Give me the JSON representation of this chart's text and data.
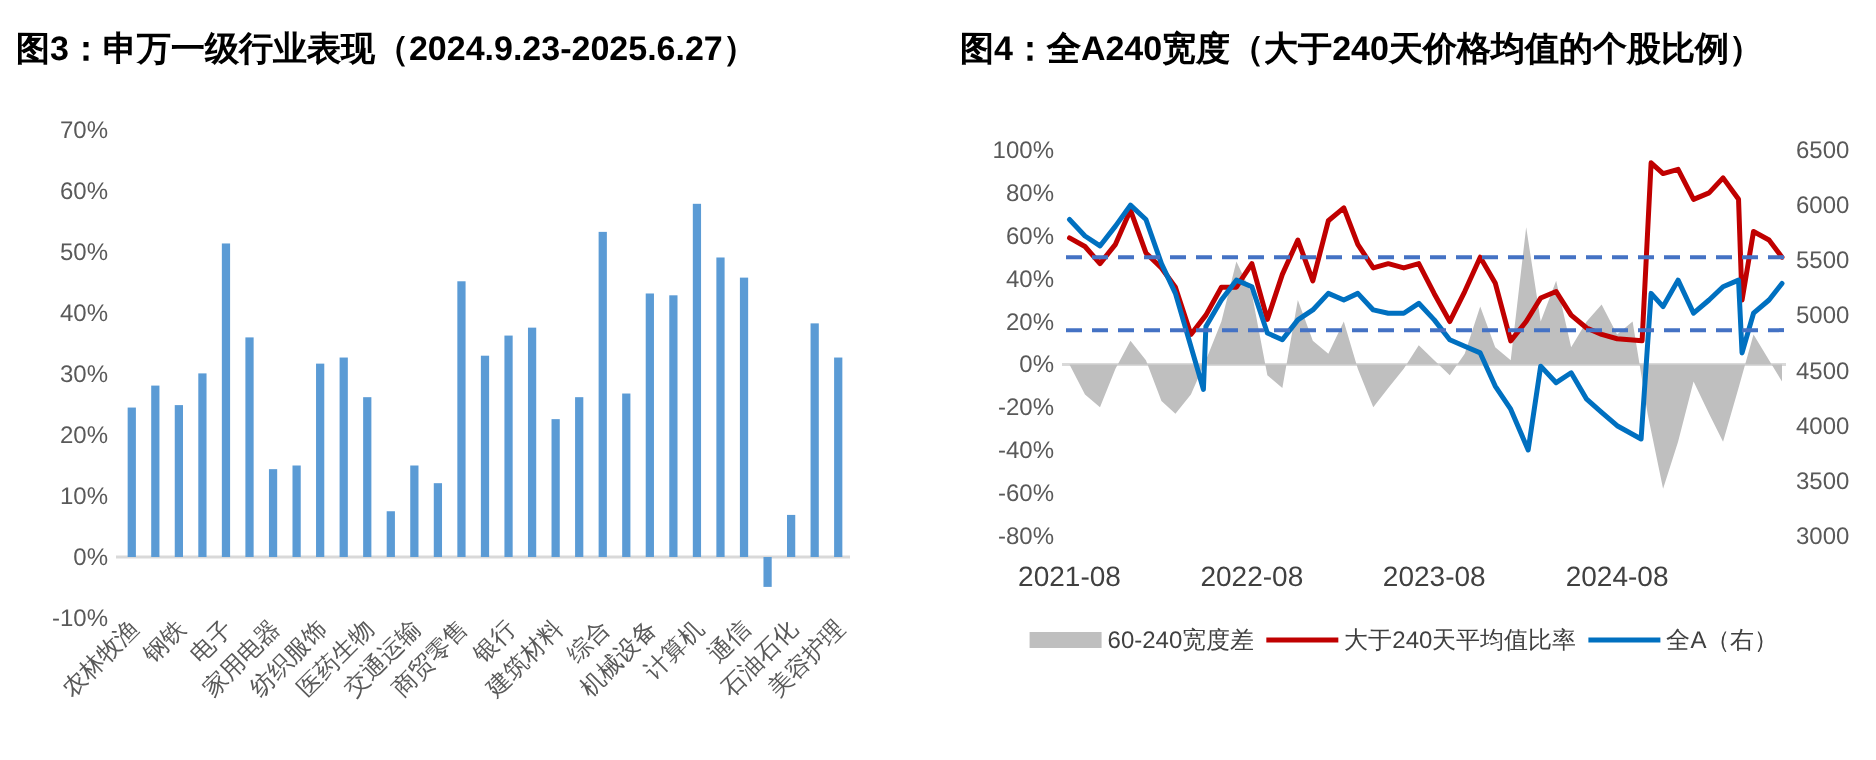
{
  "chart_data": [
    {
      "type": "bar",
      "title": "图3：申万一级行业表现（2024.9.23-2025.6.27）",
      "categories": [
        "农林牧渔",
        null,
        "钢铁",
        null,
        "电子",
        null,
        "家用电器",
        null,
        "纺织服饰",
        null,
        "医药生物",
        null,
        "交通运输",
        null,
        "商贸零售",
        null,
        "银行",
        null,
        "建筑材料",
        null,
        "综合",
        null,
        "机械设备",
        null,
        "计算机",
        null,
        "通信",
        null,
        "石油石化",
        null,
        "美容护理"
      ],
      "values": [
        24.5,
        28.1,
        24.9,
        30.1,
        51.4,
        36.0,
        14.4,
        15.0,
        31.7,
        32.7,
        26.2,
        7.5,
        15.0,
        12.1,
        45.2,
        33.0,
        36.3,
        37.6,
        22.6,
        26.2,
        53.3,
        26.8,
        43.2,
        42.9,
        57.9,
        49.1,
        45.8,
        -4.9,
        6.9,
        38.3,
        32.7
      ],
      "color": "#5b9bd5",
      "ylim": [
        -10,
        70
      ],
      "yticks": [
        {
          "value": -10,
          "label": "-10%"
        },
        {
          "value": 0,
          "label": "0%"
        },
        {
          "value": 10,
          "label": "10%"
        },
        {
          "value": 20,
          "label": "20%"
        },
        {
          "value": 30,
          "label": "30%"
        },
        {
          "value": 40,
          "label": "40%"
        },
        {
          "value": 50,
          "label": "50%"
        },
        {
          "value": 60,
          "label": "60%"
        },
        {
          "value": 70,
          "label": "70%"
        }
      ],
      "grid": false
    },
    {
      "type": "line",
      "title": "图4：全A240宽度（大于240天价格均值的个股比例）",
      "xlim": [
        "2021-07-25",
        "2025-07-05"
      ],
      "xticks": [
        "2021-08",
        "2022-08",
        "2023-08",
        "2024-08"
      ],
      "ylim": [
        -80,
        100
      ],
      "yticks": [
        {
          "value": -80,
          "label": "-80%"
        },
        {
          "value": -60,
          "label": "-60%"
        },
        {
          "value": -40,
          "label": "-40%"
        },
        {
          "value": -20,
          "label": "-20%"
        },
        {
          "value": 0,
          "label": "0%"
        },
        {
          "value": 20,
          "label": "20%"
        },
        {
          "value": 40,
          "label": "40%"
        },
        {
          "value": 60,
          "label": "60%"
        },
        {
          "value": 80,
          "label": "80%"
        },
        {
          "value": 100,
          "label": "100%"
        }
      ],
      "y2lim": [
        3000,
        6500
      ],
      "y2ticks": [
        3000,
        3500,
        4000,
        4500,
        5000,
        5500,
        6000,
        6500
      ],
      "grid": false,
      "legend": "bottom",
      "series": [
        {
          "name": "60-240宽度差",
          "type": "area",
          "color": "#bfbfbf",
          "x": [
            "2021-08-01",
            "2021-09-01",
            "2021-10-01",
            "2021-11-01",
            "2021-12-01",
            "2022-01-01",
            "2022-02-01",
            "2022-03-01",
            "2022-04-01",
            "2022-05-01",
            "2022-06-01",
            "2022-07-01",
            "2022-08-01",
            "2022-09-01",
            "2022-10-01",
            "2022-11-01",
            "2022-12-01",
            "2023-01-01",
            "2023-02-01",
            "2023-03-01",
            "2023-04-01",
            "2023-05-01",
            "2023-06-01",
            "2023-07-01",
            "2023-08-01",
            "2023-09-01",
            "2023-10-01",
            "2023-11-01",
            "2023-12-01",
            "2024-01-01",
            "2024-02-01",
            "2024-03-01",
            "2024-04-01",
            "2024-05-01",
            "2024-06-01",
            "2024-07-01",
            "2024-08-01",
            "2024-09-01",
            "2024-10-01",
            "2024-11-01",
            "2024-12-01",
            "2025-01-01",
            "2025-02-01",
            "2025-03-01",
            "2025-04-01",
            "2025-05-01",
            "2025-06-27"
          ],
          "values": [
            0,
            -14,
            -20,
            -2,
            11,
            2,
            -17,
            -23,
            -14,
            2,
            20,
            48,
            33,
            -5,
            -11,
            30,
            11,
            5,
            20,
            -2,
            -20,
            -11,
            -2,
            9,
            2,
            -5,
            5,
            27,
            8,
            2,
            64,
            20,
            39,
            8,
            20,
            28,
            14,
            20,
            -23,
            -58,
            -36,
            -8,
            -23,
            -36,
            -11,
            14,
            -8
          ]
        },
        {
          "name": "大于240天平均值比率",
          "color": "#c00000",
          "x": [
            "2021-08-01",
            "2021-09-01",
            "2021-10-01",
            "2021-11-01",
            "2021-12-01",
            "2022-01-01",
            "2022-02-01",
            "2022-03-01",
            "2022-04-01",
            "2022-05-01",
            "2022-06-01",
            "2022-07-01",
            "2022-08-01",
            "2022-09-01",
            "2022-10-01",
            "2022-11-01",
            "2022-12-01",
            "2023-01-01",
            "2023-02-01",
            "2023-03-01",
            "2023-04-01",
            "2023-05-01",
            "2023-06-01",
            "2023-07-01",
            "2023-08-01",
            "2023-09-01",
            "2023-10-01",
            "2023-11-01",
            "2023-12-01",
            "2024-01-01",
            "2024-02-01",
            "2024-03-01",
            "2024-04-01",
            "2024-05-01",
            "2024-06-01",
            "2024-07-01",
            "2024-08-01",
            "2024-09-20",
            "2024-10-08",
            "2024-11-01",
            "2024-12-01",
            "2025-01-01",
            "2025-02-01",
            "2025-03-01",
            "2025-04-01",
            "2025-04-08",
            "2025-05-01",
            "2025-06-01",
            "2025-06-27"
          ],
          "values": [
            59,
            55,
            47,
            56,
            72,
            52,
            45,
            36,
            14,
            23,
            36,
            36,
            47,
            21,
            42,
            58,
            39,
            67,
            73,
            56,
            45,
            47,
            45,
            47,
            33,
            20,
            34,
            50,
            38,
            11,
            20,
            31,
            34,
            23,
            17,
            14,
            12,
            11,
            94,
            89,
            91,
            77,
            80,
            87,
            77,
            30,
            62,
            58,
            50
          ]
        },
        {
          "name": "全A（右）",
          "color": "#0070c0",
          "axis": "y2",
          "x": [
            "2021-08-01",
            "2021-09-01",
            "2021-10-01",
            "2021-11-01",
            "2021-12-01",
            "2022-01-01",
            "2022-02-01",
            "2022-03-01",
            "2022-04-26",
            "2022-05-01",
            "2022-06-01",
            "2022-07-01",
            "2022-08-01",
            "2022-09-01",
            "2022-10-01",
            "2022-11-01",
            "2022-12-01",
            "2023-01-01",
            "2023-02-01",
            "2023-03-01",
            "2023-04-01",
            "2023-05-01",
            "2023-06-01",
            "2023-07-01",
            "2023-08-01",
            "2023-09-01",
            "2023-10-01",
            "2023-11-01",
            "2023-12-01",
            "2024-01-01",
            "2024-02-05",
            "2024-03-01",
            "2024-04-01",
            "2024-05-01",
            "2024-06-01",
            "2024-07-01",
            "2024-08-01",
            "2024-09-18",
            "2024-10-08",
            "2024-11-01",
            "2024-12-01",
            "2025-01-01",
            "2025-02-01",
            "2025-03-01",
            "2025-04-01",
            "2025-04-08",
            "2025-05-01",
            "2025-06-01",
            "2025-06-27"
          ],
          "values": [
            5870,
            5720,
            5630,
            5810,
            6000,
            5870,
            5470,
            5200,
            4330,
            4900,
            5140,
            5320,
            5260,
            4840,
            4780,
            4960,
            5050,
            5200,
            5140,
            5200,
            5050,
            5020,
            5020,
            5110,
            4960,
            4780,
            4720,
            4660,
            4360,
            4150,
            3780,
            4540,
            4390,
            4480,
            4240,
            4120,
            4000,
            3880,
            5200,
            5080,
            5320,
            5020,
            5140,
            5260,
            5320,
            4660,
            5020,
            5140,
            5290
          ]
        }
      ],
      "ref_lines": [
        {
          "axis": "y",
          "value": 50,
          "color": "#4472c4",
          "line_style": "dashed"
        },
        {
          "axis": "y",
          "value": 16,
          "color": "#4472c4",
          "line_style": "dashed"
        }
      ]
    }
  ]
}
